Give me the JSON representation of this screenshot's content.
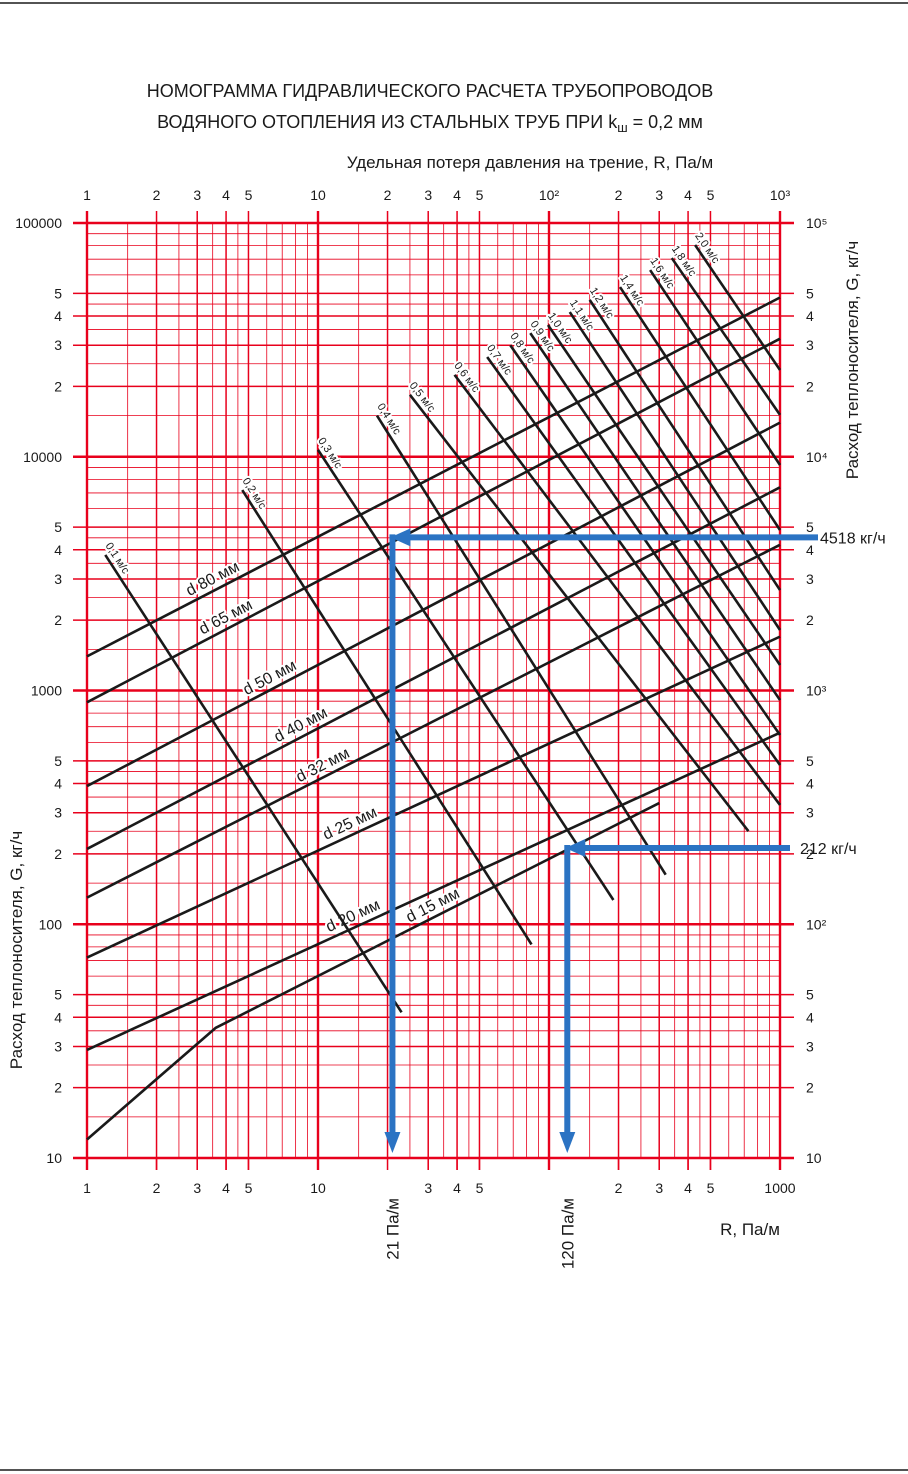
{
  "chart_data": {
    "type": "line",
    "title": {
      "line1": "НОМОГРАММА ГИДРАВЛИЧЕСКОГО РАСЧЕТА ТРУБОПРОВОДОВ",
      "line2": [
        "ВОДЯНОГО ОТОПЛЕНИЯ ИЗ СТАЛЬНЫХ ТРУБ ПРИ k",
        "ш",
        " = 0,2 мм"
      ]
    },
    "x_label_top": "Удельная потеря давления на трение, R, Па/м",
    "x_label_bottom": "R, Па/м",
    "y_label_left": "Расход теплоносителя, G, кг/ч",
    "y_label_right": "Расход теплоносителя, G, кг/ч",
    "xscale": "log",
    "yscale": "log",
    "xlim": [
      1,
      1000
    ],
    "ylim": [
      10,
      100000
    ],
    "grid": true,
    "grid_color": "#e8001c",
    "xticks": [
      1,
      2,
      3,
      4,
      5,
      10,
      {
        "value": 20,
        "label": "2"
      },
      {
        "value": 30,
        "label": "3"
      },
      {
        "value": 40,
        "label": "4"
      },
      {
        "value": 50,
        "label": "5"
      },
      {
        "value": 100,
        "label": "10²"
      },
      {
        "value": 200,
        "label": "2"
      },
      {
        "value": 300,
        "label": "3"
      },
      {
        "value": 400,
        "label": "4"
      },
      {
        "value": 500,
        "label": "5"
      },
      {
        "value": 1000,
        "label": "10³"
      }
    ],
    "xticks_bottom": [
      1,
      2,
      3,
      4,
      5,
      10,
      {
        "value": 30,
        "label": "3"
      },
      {
        "value": 40,
        "label": "4"
      },
      {
        "value": 50,
        "label": "5"
      },
      {
        "value": 200,
        "label": "2"
      },
      {
        "value": 300,
        "label": "3"
      },
      {
        "value": 400,
        "label": "4"
      },
      {
        "value": 500,
        "label": "5"
      },
      1000
    ],
    "yticks": [
      100000,
      {
        "value": 50000,
        "label": "5"
      },
      {
        "value": 40000,
        "label": "4"
      },
      {
        "value": 30000,
        "label": "3"
      },
      {
        "value": 20000,
        "label": "2"
      },
      10000,
      {
        "value": 5000,
        "label": "5"
      },
      {
        "value": 4000,
        "label": "4"
      },
      {
        "value": 3000,
        "label": "3"
      },
      {
        "value": 2000,
        "label": "2"
      },
      1000,
      {
        "value": 500,
        "label": "5"
      },
      {
        "value": 400,
        "label": "4"
      },
      {
        "value": 300,
        "label": "3"
      },
      {
        "value": 200,
        "label": "2"
      },
      100,
      {
        "value": 50,
        "label": "5"
      },
      {
        "value": 40,
        "label": "4"
      },
      {
        "value": 30,
        "label": "3"
      },
      {
        "value": 20,
        "label": "2"
      },
      10
    ],
    "yticks_right": [
      {
        "value": 100000,
        "label": "10⁵"
      },
      {
        "value": 50000,
        "label": "5"
      },
      {
        "value": 40000,
        "label": "4"
      },
      {
        "value": 30000,
        "label": "3"
      },
      {
        "value": 20000,
        "label": "2"
      },
      {
        "value": 10000,
        "label": "10⁴"
      },
      {
        "value": 5000,
        "label": "5"
      },
      {
        "value": 4000,
        "label": "4"
      },
      {
        "value": 3000,
        "label": "3"
      },
      {
        "value": 2000,
        "label": "2"
      },
      {
        "value": 1000,
        "label": "10³"
      },
      {
        "value": 500,
        "label": "5"
      },
      {
        "value": 400,
        "label": "4"
      },
      {
        "value": 300,
        "label": "3"
      },
      {
        "value": 200,
        "label": "2"
      },
      {
        "value": 100,
        "label": "10²"
      },
      {
        "value": 50,
        "label": "5"
      },
      {
        "value": 40,
        "label": "4"
      },
      {
        "value": 30,
        "label": "3"
      },
      {
        "value": 20,
        "label": "2"
      },
      10
    ],
    "x_minor_grid": [
      1.5,
      2.5,
      3.5,
      4.5,
      6,
      7,
      8,
      9,
      15,
      25,
      35,
      45,
      60,
      70,
      80,
      90,
      150,
      250,
      350,
      450,
      600,
      700,
      800,
      900
    ],
    "y_minor_grid": [
      15,
      25,
      35,
      45,
      60,
      70,
      80,
      90,
      150,
      250,
      350,
      450,
      600,
      700,
      800,
      900,
      1500,
      2500,
      3500,
      4500,
      6000,
      7000,
      8000,
      9000,
      15000,
      25000,
      35000,
      45000,
      60000,
      70000,
      80000,
      90000
    ],
    "series": [
      {
        "name": "d 80 мм",
        "color": "#1a1a1a",
        "x": [
          1,
          1000
        ],
        "values": [
          1400,
          48000
        ]
      },
      {
        "name": "d 65 мм",
        "color": "#1a1a1a",
        "x": [
          1,
          1000
        ],
        "values": [
          890,
          32000
        ]
      },
      {
        "name": "d 50 мм",
        "color": "#1a1a1a",
        "x": [
          1,
          1000
        ],
        "values": [
          390,
          14000
        ]
      },
      {
        "name": "d 40 мм",
        "color": "#1a1a1a",
        "x": [
          1,
          1000
        ],
        "values": [
          210,
          7400
        ]
      },
      {
        "name": "d 32 мм",
        "color": "#1a1a1a",
        "x": [
          1,
          1000
        ],
        "values": [
          130,
          4200
        ]
      },
      {
        "name": "d 25 мм",
        "color": "#1a1a1a",
        "x": [
          1,
          1000
        ],
        "values": [
          72,
          1700
        ]
      },
      {
        "name": "d 20 мм",
        "color": "#1a1a1a",
        "x": [
          1,
          1000
        ],
        "values": [
          29,
          660
        ]
      },
      {
        "name": "d 15 мм",
        "color": "#1a1a1a",
        "x": [
          1,
          3.6,
          300
        ],
        "values": [
          12,
          36,
          330
        ]
      }
    ],
    "velocity_series": [
      {
        "name": "0,1 м/с",
        "color": "#1a1a1a",
        "x": [
          1.2,
          23
        ],
        "values": [
          3800,
          42
        ]
      },
      {
        "name": "0,2 м/с",
        "color": "#1a1a1a",
        "x": [
          4.7,
          84
        ],
        "values": [
          7200,
          82
        ]
      },
      {
        "name": "0,3 м/с",
        "color": "#1a1a1a",
        "x": [
          10,
          190
        ],
        "values": [
          10700,
          127
        ]
      },
      {
        "name": "0,4 м/с",
        "color": "#1a1a1a",
        "x": [
          18,
          320
        ],
        "values": [
          15000,
          163
        ]
      },
      {
        "name": "0,5 м/с",
        "color": "#1a1a1a",
        "x": [
          25,
          730
        ],
        "values": [
          18400,
          250
        ]
      },
      {
        "name": "0,6 м/с",
        "color": "#1a1a1a",
        "x": [
          39,
          1000
        ],
        "values": [
          22400,
          324
        ]
      },
      {
        "name": "0,7 м/с",
        "color": "#1a1a1a",
        "x": [
          54,
          1000
        ],
        "values": [
          26700,
          480
        ]
      },
      {
        "name": "0,8 м/с",
        "color": "#1a1a1a",
        "x": [
          68,
          1000
        ],
        "values": [
          30000,
          645
        ]
      },
      {
        "name": "0,9 м/с",
        "color": "#1a1a1a",
        "x": [
          83,
          1000
        ],
        "values": [
          33800,
          910
        ]
      },
      {
        "name": "1,0 м/с",
        "color": "#1a1a1a",
        "x": [
          99,
          1000
        ],
        "values": [
          36600,
          1285
        ]
      },
      {
        "name": "1,1 м/с",
        "color": "#1a1a1a",
        "x": [
          123,
          1000
        ],
        "values": [
          41600,
          1815
        ]
      },
      {
        "name": "1,2 м/с",
        "color": "#1a1a1a",
        "x": [
          150,
          1000
        ],
        "values": [
          46900,
          2690
        ]
      },
      {
        "name": "1,4 м/с",
        "color": "#1a1a1a",
        "x": [
          203,
          1000
        ],
        "values": [
          53200,
          4860
        ]
      },
      {
        "name": "1,6 м/с",
        "color": "#1a1a1a",
        "x": [
          274,
          1000
        ],
        "values": [
          62900,
          9220
        ]
      },
      {
        "name": "1,8 м/с",
        "color": "#1a1a1a",
        "x": [
          340,
          1000
        ],
        "values": [
          70800,
          15100
        ]
      },
      {
        "name": "2,0 м/с",
        "color": "#1a1a1a",
        "x": [
          429,
          1000
        ],
        "values": [
          80500,
          23500
        ]
      }
    ],
    "examples": [
      {
        "G": 4518,
        "G_label": "4518 кг/ч",
        "R": 21,
        "R_label": "21 Па/м",
        "color": "#2b73c3"
      },
      {
        "G": 212,
        "G_label": "212 кг/ч",
        "R": 120,
        "R_label": "120 Па/м",
        "color": "#2b73c3"
      }
    ]
  }
}
